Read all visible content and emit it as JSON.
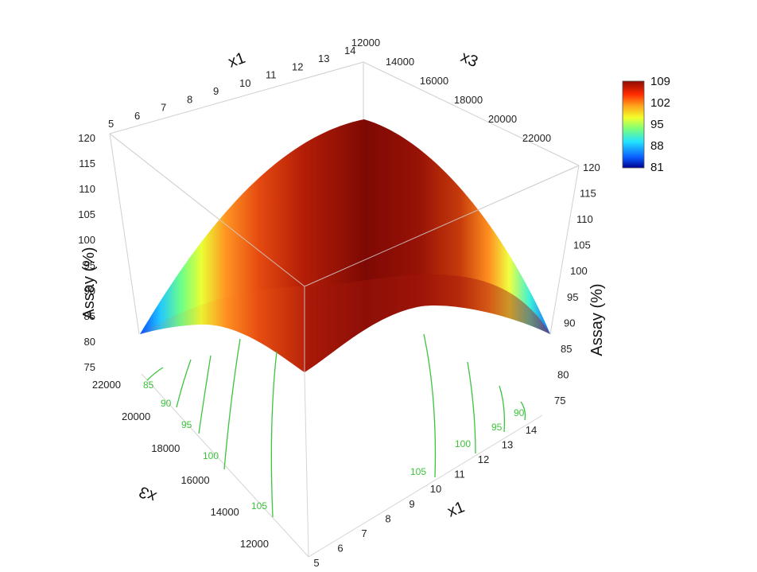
{
  "chart_data": {
    "type": "surface-3d",
    "zlabel": "Assay (%)",
    "xlabel": "x1",
    "ylabel": "x3",
    "x_ticks": [
      5,
      6,
      7,
      8,
      9,
      10,
      11,
      12,
      13,
      14
    ],
    "y_ticks": [
      12000,
      14000,
      16000,
      18000,
      20000,
      22000
    ],
    "z_ticks": [
      75,
      80,
      85,
      90,
      95,
      100,
      105,
      110,
      115,
      120
    ],
    "z_ticks_right": [
      75,
      80,
      85,
      90,
      95,
      100,
      105,
      110,
      115,
      120
    ],
    "xlim": [
      5,
      14
    ],
    "ylim": [
      11000,
      22000
    ],
    "zlim": [
      75,
      120
    ],
    "colorbar": {
      "ticks": [
        81,
        88,
        95,
        102,
        109
      ],
      "colors": [
        "#00008f",
        "#0a5cff",
        "#22e2ff",
        "#7dff7a",
        "#f2ff2a",
        "#ff9f1a",
        "#ff2a00",
        "#8e0b05"
      ]
    },
    "contours": {
      "left_face_labels": [
        "85",
        "90",
        "95",
        "100",
        "105"
      ],
      "right_face_labels": [
        "90",
        "95",
        "100",
        "105"
      ],
      "color": "#3cc43c"
    }
  }
}
